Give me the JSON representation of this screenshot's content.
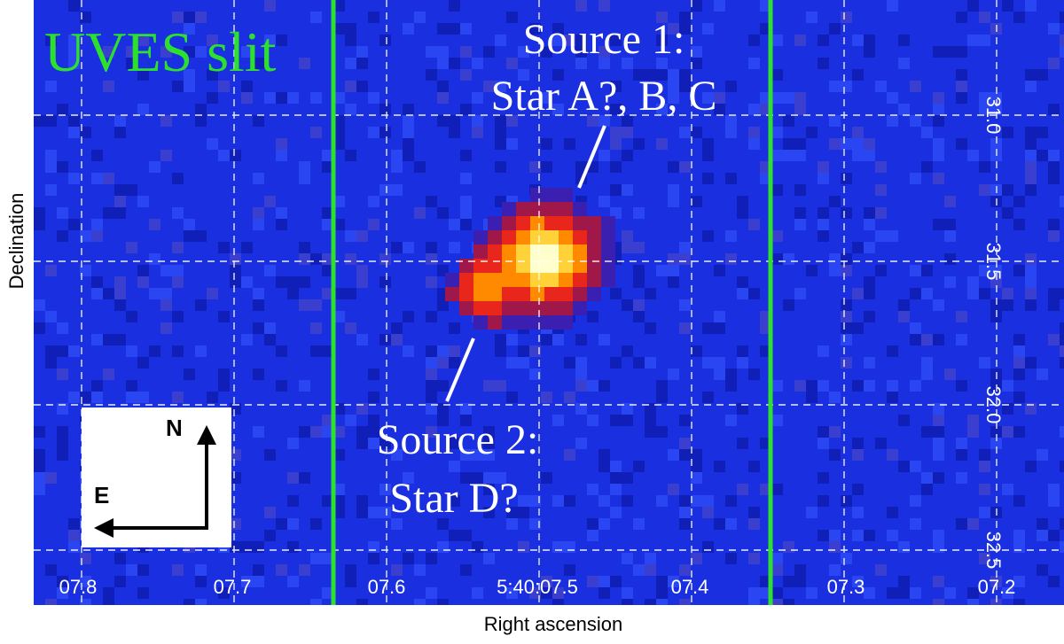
{
  "image": {
    "background_color": "#1a2fe0",
    "slit_color": "#2ee02e",
    "grid_color": "#ffffff",
    "hot_colors": [
      "#ffffcc",
      "#ffd23a",
      "#ff8a00",
      "#e8261c",
      "#a0184a"
    ]
  },
  "slit_label": "UVES slit",
  "source1": {
    "line1": "Source 1:",
    "line2": "Star A?, B, C"
  },
  "source2": {
    "line1": "Source 2:",
    "line2": "Star D?"
  },
  "compass": {
    "north": "N",
    "east": "E"
  },
  "axes": {
    "xlabel": "Right ascension",
    "ylabel": "Declination",
    "x_ticks": [
      "07.8",
      "07.7",
      "07.6",
      "5:40:07.5",
      "07.4",
      "07.3",
      "07.2"
    ],
    "y_ticks": [
      "31.0",
      "31.5",
      "32.0",
      "32.5"
    ]
  }
}
